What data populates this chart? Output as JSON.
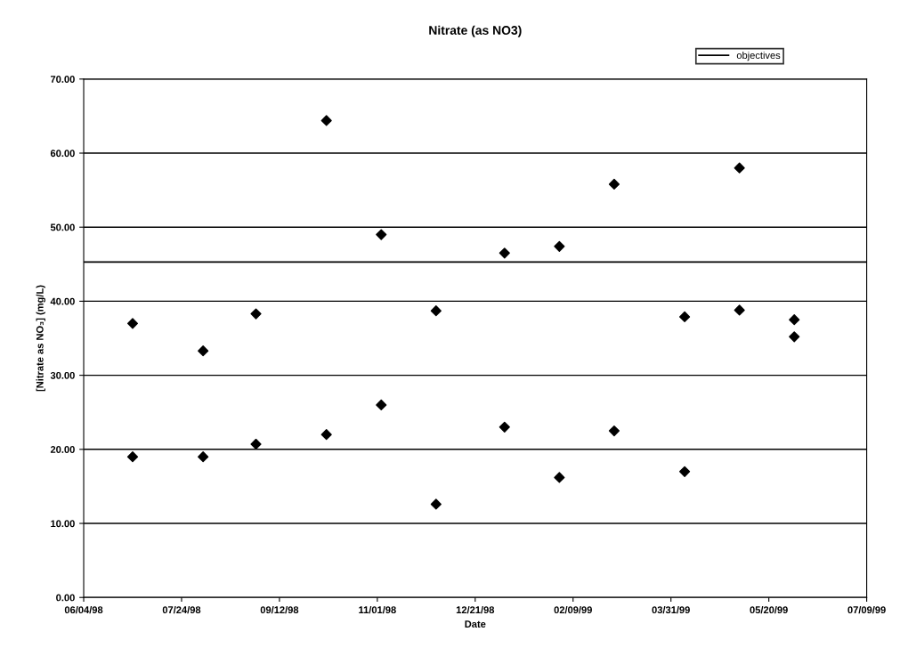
{
  "chart_data": {
    "type": "scatter",
    "title": "Nitrate (as NO3)",
    "xlabel": "Date",
    "ylabel": "[Nitrate as NO₃] (mg/L)",
    "series": [
      {
        "color": "#000000",
        "marker": "diamond",
        "x": [
          "1998-06-29",
          "1998-06-29",
          "1998-08-04",
          "1998-08-04",
          "1998-08-31",
          "1998-08-31",
          "1998-10-06",
          "1998-10-06",
          "1998-11-03",
          "1998-11-03",
          "1998-12-01",
          "1998-12-01",
          "1999-01-05",
          "1999-01-05",
          "1999-02-02",
          "1999-02-02",
          "1999-03-02",
          "1999-03-02",
          "1999-04-07",
          "1999-04-07",
          "1999-05-05",
          "1999-05-05",
          "1999-06-02",
          "1999-06-02"
        ],
        "values": [
          37.0,
          19.0,
          33.3,
          19.0,
          38.3,
          20.7,
          64.4,
          22.0,
          49.0,
          26.0,
          38.7,
          12.6,
          46.5,
          23.0,
          47.4,
          16.2,
          55.8,
          22.5,
          37.9,
          17.0,
          58.0,
          38.8,
          37.5,
          35.2
        ]
      },
      {
        "type": "line",
        "name": "objectives",
        "color": "#000000",
        "marker": "none",
        "line_style": "solid",
        "x": [
          "1998-06-04",
          "1999-07-09"
        ],
        "values": [
          45.3,
          45.3
        ]
      }
    ],
    "xlim": [
      "1998-06-04",
      "1999-07-09"
    ],
    "xticks": [
      {
        "value": "1998-06-04",
        "label": "06/04/98"
      },
      {
        "value": "1998-07-24",
        "label": "07/24/98"
      },
      {
        "value": "1998-09-12",
        "label": "09/12/98"
      },
      {
        "value": "1998-11-01",
        "label": "11/01/98"
      },
      {
        "value": "1998-12-21",
        "label": "12/21/98"
      },
      {
        "value": "1999-02-09",
        "label": "02/09/99"
      },
      {
        "value": "1999-03-31",
        "label": "03/31/99"
      },
      {
        "value": "1999-05-20",
        "label": "05/20/99"
      },
      {
        "value": "1999-07-09",
        "label": "07/09/99"
      }
    ],
    "ylim": [
      0,
      70
    ],
    "yticks": [
      {
        "value": 0,
        "label": "0.00"
      },
      {
        "value": 10,
        "label": "10.00"
      },
      {
        "value": 20,
        "label": "20.00"
      },
      {
        "value": 30,
        "label": "30.00"
      },
      {
        "value": 40,
        "label": "40.00"
      },
      {
        "value": 50,
        "label": "50.00"
      },
      {
        "value": 60,
        "label": "60.00"
      },
      {
        "value": 70,
        "label": "70.00"
      }
    ],
    "grid": "y",
    "legend": "top right"
  }
}
